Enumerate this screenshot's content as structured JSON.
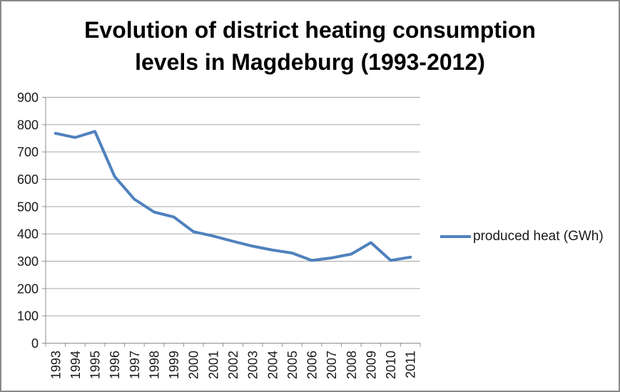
{
  "title": {
    "line1": "Evolution of district heating consumption",
    "line2": "levels in Magdeburg (1993-2012)"
  },
  "legend": {
    "label": "produced heat (GWh)"
  },
  "colors": {
    "series": "#4F81BD",
    "gridline": "#A6A6A6",
    "axis": "#8E8E8E",
    "border": "#898989",
    "text": "#1a1a1a"
  },
  "chart_data": {
    "type": "line",
    "title": "Evolution of district heating consumption levels in Magdeburg (1993-2012)",
    "categories": [
      "1993",
      "1994",
      "1995",
      "1996",
      "1997",
      "1998",
      "1999",
      "2000",
      "2001",
      "2002",
      "2003",
      "2004",
      "2005",
      "2006",
      "2007",
      "2008",
      "2009",
      "2010",
      "2011"
    ],
    "series": [
      {
        "name": "produced heat (GWh)",
        "values": [
          768,
          753,
          775,
          610,
          527,
          480,
          462,
          408,
          392,
          373,
          355,
          341,
          330,
          303,
          312,
          326,
          368,
          303,
          315
        ]
      }
    ],
    "ylim": [
      0,
      900
    ],
    "ytick_step": 100,
    "xlabel": "",
    "ylabel": "",
    "grid": true,
    "legend_position": "right"
  }
}
